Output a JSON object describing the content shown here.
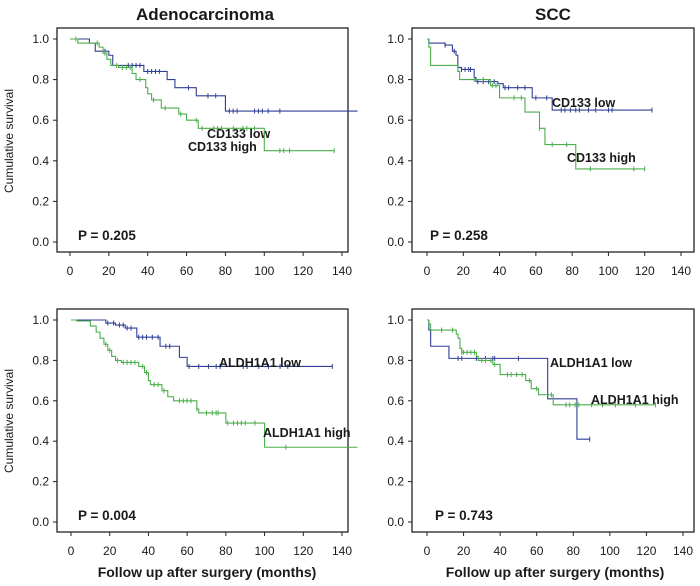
{
  "colors": {
    "low": "#2f3f96",
    "high": "#4cae4c",
    "axis": "#222222"
  },
  "column_titles": [
    "Adenocarcinoma",
    "SCC"
  ],
  "ylabel": "Cumulative survival",
  "xlabel": "Follow up after surgery (months)",
  "chart_data": [
    {
      "type": "line",
      "title": "Adenocarcinoma",
      "marker": "CD133",
      "xlim": [
        0,
        140
      ],
      "ylim": [
        0,
        1.0
      ],
      "xticks": [
        "0",
        "20",
        "40",
        "60",
        "80",
        "100",
        "120",
        "140"
      ],
      "yticks": [
        "0.0",
        "0.2",
        "0.4",
        "0.6",
        "0.8",
        "1.0"
      ],
      "p_value": "P = 0.205",
      "series": [
        {
          "name": "CD133 low",
          "group": "low",
          "steps": [
            [
              0,
              1
            ],
            [
              10,
              0.98
            ],
            [
              13,
              0.94
            ],
            [
              20,
              0.92
            ],
            [
              22,
              0.87
            ],
            [
              38,
              0.84
            ],
            [
              50,
              0.8
            ],
            [
              54,
              0.76
            ],
            [
              65,
              0.72
            ],
            [
              80,
              0.645
            ]
          ],
          "end": 148,
          "censored": [
            18,
            30,
            32,
            34,
            36,
            40,
            42,
            44,
            46,
            61,
            71,
            75,
            82,
            84,
            86,
            95,
            97,
            99,
            102,
            108
          ]
        },
        {
          "name": "CD133 high",
          "group": "high",
          "steps": [
            [
              0,
              1
            ],
            [
              4,
              0.98
            ],
            [
              15,
              0.96
            ],
            [
              17,
              0.93
            ],
            [
              19,
              0.9
            ],
            [
              21,
              0.87
            ],
            [
              25,
              0.86
            ],
            [
              32,
              0.83
            ],
            [
              34,
              0.8
            ],
            [
              39,
              0.76
            ],
            [
              40,
              0.73
            ],
            [
              42,
              0.7
            ],
            [
              47,
              0.66
            ],
            [
              56,
              0.63
            ],
            [
              60,
              0.6
            ],
            [
              66,
              0.56
            ],
            [
              100,
              0.45
            ]
          ],
          "end": 136,
          "censored": [
            3,
            14,
            18,
            24,
            27,
            29,
            31,
            36,
            43,
            49,
            57,
            65,
            68,
            74,
            76,
            78,
            84,
            89,
            91,
            95,
            108,
            110,
            113,
            136
          ]
        }
      ]
    },
    {
      "type": "line",
      "title": "SCC",
      "marker": "CD133",
      "xlim": [
        0,
        140
      ],
      "ylim": [
        0,
        1.0
      ],
      "xticks": [
        "0",
        "20",
        "40",
        "60",
        "80",
        "100",
        "120",
        "140"
      ],
      "yticks": [
        "0.0",
        "0.2",
        "0.4",
        "0.6",
        "0.8",
        "1.0"
      ],
      "p_value": "P = 0.258",
      "series": [
        {
          "name": "CD133 low",
          "group": "low",
          "steps": [
            [
              0,
              1
            ],
            [
              1,
              0.98
            ],
            [
              10,
              0.97
            ],
            [
              14,
              0.94
            ],
            [
              16,
              0.92
            ],
            [
              17,
              0.86
            ],
            [
              19,
              0.85
            ],
            [
              26,
              0.81
            ],
            [
              27,
              0.79
            ],
            [
              39,
              0.78
            ],
            [
              42,
              0.76
            ],
            [
              58,
              0.71
            ],
            [
              69,
              0.65
            ]
          ],
          "end": 124,
          "censored": [
            10,
            15,
            19,
            21,
            23,
            24,
            28,
            31,
            34,
            37,
            43,
            45,
            50,
            54,
            60,
            66,
            74,
            76,
            79,
            82,
            84,
            89,
            93,
            100,
            102,
            124
          ]
        },
        {
          "name": "CD133 high",
          "group": "high",
          "steps": [
            [
              0,
              1
            ],
            [
              1,
              0.96
            ],
            [
              2,
              0.87
            ],
            [
              17,
              0.84
            ],
            [
              18,
              0.8
            ],
            [
              35,
              0.77
            ],
            [
              40,
              0.71
            ],
            [
              54,
              0.64
            ],
            [
              62,
              0.56
            ],
            [
              65,
              0.48
            ],
            [
              82,
              0.36
            ]
          ],
          "end": 120,
          "censored": [
            26,
            31,
            36,
            38,
            48,
            52,
            62,
            69,
            77,
            90,
            114,
            120
          ]
        }
      ]
    },
    {
      "type": "line",
      "title": "Adenocarcinoma",
      "marker": "ALDH1A1",
      "xlim": [
        0,
        140
      ],
      "ylim": [
        0,
        1.0
      ],
      "xticks": [
        "0",
        "20",
        "40",
        "60",
        "80",
        "100",
        "120",
        "140"
      ],
      "yticks": [
        "0.0",
        "0.2",
        "0.4",
        "0.6",
        "0.8",
        "1.0"
      ],
      "p_value": "P = 0.004",
      "series": [
        {
          "name": "ALDH1A1 low",
          "group": "low",
          "steps": [
            [
              0,
              1
            ],
            [
              18,
              0.985
            ],
            [
              23,
              0.975
            ],
            [
              28,
              0.96
            ],
            [
              34,
              0.915
            ],
            [
              46,
              0.87
            ],
            [
              56,
              0.815
            ],
            [
              60,
              0.77
            ]
          ],
          "end": 135,
          "censored": [
            19,
            22,
            25,
            27,
            29,
            31,
            35,
            37,
            39,
            42,
            45,
            49,
            51,
            61,
            66,
            71,
            75,
            77,
            89,
            91,
            97,
            102,
            108,
            112,
            135
          ]
        },
        {
          "name": "ALDH1A1 high",
          "group": "high",
          "steps": [
            [
              0,
              1
            ],
            [
              3,
              0.995
            ],
            [
              10,
              0.97
            ],
            [
              13,
              0.94
            ],
            [
              15,
              0.91
            ],
            [
              17,
              0.88
            ],
            [
              19,
              0.85
            ],
            [
              21,
              0.82
            ],
            [
              23,
              0.8
            ],
            [
              26,
              0.79
            ],
            [
              35,
              0.77
            ],
            [
              38,
              0.74
            ],
            [
              40,
              0.7
            ],
            [
              41,
              0.68
            ],
            [
              47,
              0.65
            ],
            [
              50,
              0.62
            ],
            [
              53,
              0.6
            ],
            [
              65,
              0.56
            ],
            [
              66,
              0.54
            ],
            [
              80,
              0.49
            ],
            [
              100,
              0.37
            ]
          ],
          "end": 148,
          "censored": [
            18,
            20,
            24,
            27,
            29,
            31,
            33,
            37,
            39,
            43,
            45,
            48,
            56,
            58,
            60,
            62,
            65,
            70,
            73,
            75,
            76,
            81,
            84,
            86,
            88,
            90,
            95,
            111
          ]
        }
      ]
    },
    {
      "type": "line",
      "title": "SCC",
      "marker": "ALDH1A1",
      "xlim": [
        0,
        140
      ],
      "ylim": [
        0,
        1.0
      ],
      "xticks": [
        "0",
        "20",
        "40",
        "60",
        "80",
        "100",
        "120",
        "140"
      ],
      "yticks": [
        "0.0",
        "0.2",
        "0.4",
        "0.6",
        "0.8",
        "1.0"
      ],
      "p_value": "P = 0.743",
      "series": [
        {
          "name": "ALDH1A1 low",
          "group": "low",
          "steps": [
            [
              0,
              1
            ],
            [
              1,
              0.95
            ],
            [
              2,
              0.87
            ],
            [
              12,
              0.81
            ],
            [
              66,
              0.61
            ],
            [
              82,
              0.41
            ]
          ],
          "end": 89,
          "censored": [
            17,
            19,
            27,
            32,
            36,
            37,
            50,
            89
          ]
        },
        {
          "name": "ALDH1A1 high",
          "group": "high",
          "steps": [
            [
              0,
              1
            ],
            [
              1,
              0.98
            ],
            [
              2,
              0.95
            ],
            [
              16,
              0.93
            ],
            [
              17,
              0.91
            ],
            [
              18,
              0.86
            ],
            [
              19,
              0.84
            ],
            [
              27,
              0.82
            ],
            [
              28,
              0.8
            ],
            [
              36,
              0.78
            ],
            [
              40,
              0.73
            ],
            [
              54,
              0.7
            ],
            [
              57,
              0.66
            ],
            [
              61,
              0.63
            ],
            [
              69,
              0.58
            ]
          ],
          "end": 125,
          "censored": [
            8,
            14,
            19,
            20,
            22,
            24,
            26,
            30,
            32,
            35,
            37,
            44,
            46,
            49,
            52,
            56,
            60,
            68,
            76,
            78,
            81,
            83,
            90,
            96,
            103,
            114,
            125
          ]
        }
      ]
    }
  ]
}
